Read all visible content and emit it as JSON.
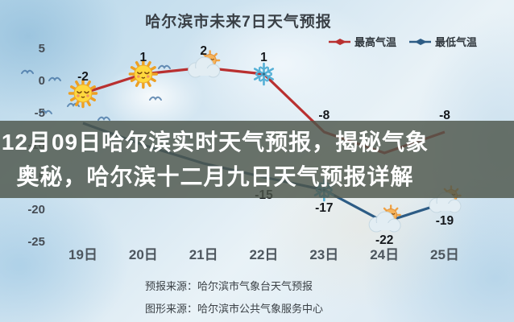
{
  "title": "哈尔滨市未来7日天气预报",
  "banner": {
    "line1": "12月09日哈尔滨实时天气预报，揭秘气象",
    "line2": "奥秘，哈尔滨十二月九日天气预报详解"
  },
  "footer": {
    "forecast_source": "预报来源：哈尔滨市气象台天气预报",
    "graphic_source": "图形来源：哈尔滨市公共气象服务中心"
  },
  "colors": {
    "high_line": "#b93030",
    "low_line": "#2d5c85",
    "banner_bg": "rgba(77,85,74,0.82)",
    "banner_text": "#ffffff",
    "axis_text": "#454c54",
    "day_text": "#4d565e",
    "data_label": "#15181c",
    "snowflake": "#55b0d6"
  },
  "chart_data": {
    "type": "line",
    "title": "哈尔滨市未来7日天气预报",
    "categories": [
      "19日",
      "20日",
      "21日",
      "22日",
      "23日",
      "24日",
      "25日"
    ],
    "series": [
      {
        "name": "最高气温",
        "color": "#b93030",
        "label_position": "above",
        "values": [
          -2,
          1,
          2,
          1,
          -8,
          null,
          -8
        ],
        "icons": [
          "sun",
          "sun",
          "sun-behind-cloud",
          "snowflake",
          null,
          null,
          null
        ]
      },
      {
        "name": "最低气温",
        "color": "#2d5c85",
        "label_position": "below",
        "values": [
          null,
          null,
          null,
          -15,
          -17,
          -22,
          -19
        ],
        "icons": [
          null,
          null,
          null,
          null,
          "snowflake",
          "sun-behind-cloud",
          "sun-behind-cloud"
        ]
      }
    ],
    "y_ticks": [
      5,
      0,
      -5,
      -10,
      -15,
      -20,
      -25
    ],
    "ylim": [
      -27,
      7
    ],
    "legend_position": "top-right",
    "grid": false
  }
}
